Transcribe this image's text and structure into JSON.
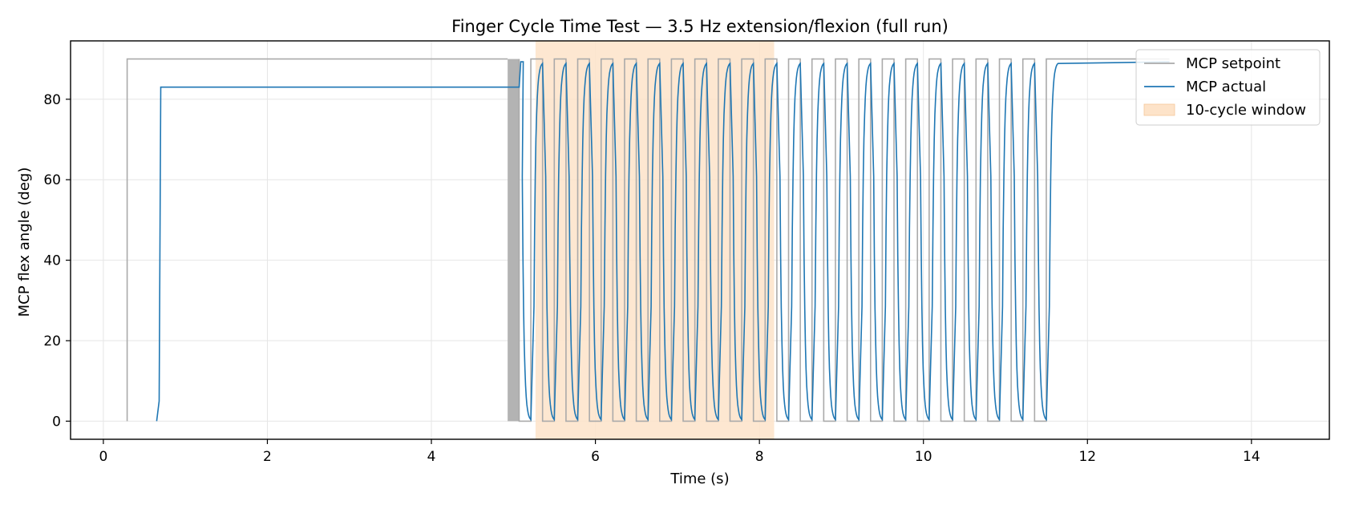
{
  "chart_data": {
    "type": "line",
    "title": "Finger Cycle Time Test — 3.5 Hz extension/flexion (full run)",
    "xlabel": "Time (s)",
    "ylabel": "MCP flex angle (deg)",
    "xlim": [
      -0.4,
      14.95
    ],
    "ylim": [
      -4.5,
      94.5
    ],
    "xticks": [
      0,
      2,
      4,
      6,
      8,
      10,
      12,
      14
    ],
    "yticks": [
      0,
      20,
      40,
      60,
      80
    ],
    "grid": true,
    "legend_position": "top-right",
    "shaded_region": {
      "name": "10-cycle window",
      "x_start": 5.27,
      "x_end": 8.18,
      "color": "#fde3c9"
    },
    "series": [
      {
        "name": "MCP setpoint",
        "color": "#aaaaaa",
        "waveform": {
          "baseline": 0,
          "high": 90,
          "initial_step_time": 0.29,
          "dense_burst": [
            4.93,
            5.07
          ],
          "square_wave_start": 5.07,
          "period_s": 0.2857,
          "duty_high": 0.5,
          "square_wave_end": 11.63,
          "hold_high_until": 13.0
        }
      },
      {
        "name": "MCP actual",
        "color": "#1f77b4",
        "waveform": {
          "baseline": 0,
          "plateau": 83,
          "initial_rise_time": 0.65,
          "plateau_until": 5.07,
          "high": 89.3,
          "cycling_start": 5.07,
          "period_s": 0.2857,
          "lag_s": 0.03,
          "cycling_end": 11.63,
          "final_hold_until": 13.0
        }
      }
    ]
  }
}
